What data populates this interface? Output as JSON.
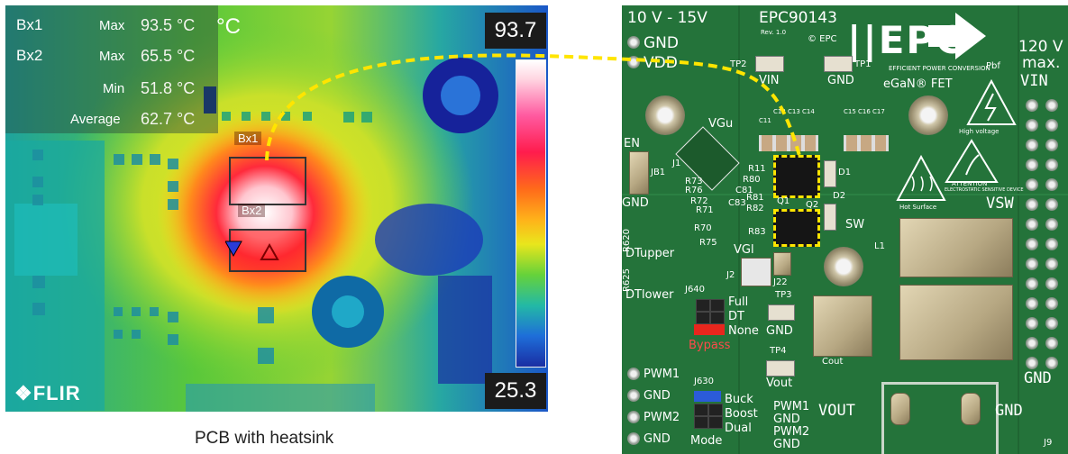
{
  "thermal": {
    "box1_label": "Bx1",
    "box2_label": "Bx2",
    "max1_label": "Max",
    "max1_value": "93.5 °C",
    "max2_label": "Max",
    "max2_value": "65.5 °C",
    "min_label": "Min",
    "min_value": "51.8 °C",
    "avg_label": "Average",
    "avg_value": "62.7 °C",
    "unit": "°C",
    "scale_max": "93.7",
    "scale_min": "25.3",
    "brand": "FLIR",
    "caption": "PCB with heatsink",
    "colors": {
      "hot": "#ff1c4d",
      "cool": "#1a2ea3",
      "mid": "#e9e61c"
    }
  },
  "pcb": {
    "voltage_in": "10 V - 15V",
    "board_name": "EPC90143",
    "rev": "Rev. 1.0",
    "copyright": "© EPC",
    "logo": "EPC",
    "logo_sub": "EFFICIENT POWER CONVERSION",
    "pbf": "Pbf",
    "gnd_top": "GND",
    "vdd": "VDD",
    "tp2": "TP2",
    "vin_tp": "VIN",
    "tp1": "TP1",
    "gnd_tp": "GND",
    "egan": "eGaN® FET",
    "high_v_title": "120 V",
    "high_v_sub": "max.",
    "vin_right": "VIN",
    "high_voltage": "High voltage",
    "vgu": "VGu",
    "c_labels": [
      "C11",
      "C12",
      "C13",
      "C14",
      "C15",
      "C16",
      "C17"
    ],
    "en": "EN",
    "jb1": "JB1",
    "r80": "R80",
    "r11": "R11",
    "c81": "C81",
    "r81": "R81",
    "r82": "R82",
    "c83": "C83",
    "d1": "D1",
    "d2": "D2",
    "q1": "Q1",
    "q2": "Q2",
    "sw": "SW",
    "r83": "R83",
    "hot_surface": "Hot Surface",
    "attention": "ATTENTION",
    "esd_sub": "ELECTROSTATIC SENSITIVE DEVICE",
    "vsw": "VSW",
    "l1": "L1",
    "gnd_left": "GND",
    "r620": "R620",
    "dt_upper": "DTupper",
    "r625": "R625",
    "dt_lower": "DTlower",
    "vgl": "VGl",
    "j2": "J2",
    "j22": "J22",
    "j640": "J640",
    "full": "Full",
    "dt": "DT",
    "none": "None",
    "bypass": "Bypass",
    "tp3": "TP3",
    "gnd_tp3": "GND",
    "tp4": "TP4",
    "vout_tp": "Vout",
    "cout": "Cout",
    "pwm1": "PWM1",
    "gnd_a": "GND",
    "pwm2": "PWM2",
    "gnd_b": "GND",
    "j630": "J630",
    "buck": "Buck",
    "boost": "Boost",
    "dual": "Dual",
    "mode": "Mode",
    "pwm1_b": "PWM1",
    "gnd_c": "GND",
    "pwm2_b": "PWM2",
    "gnd_d": "GND",
    "vout_conn": "VOUT",
    "gnd_conn": "GND",
    "gnd_right": "GND",
    "j9": "J9",
    "r70": "R70",
    "r71": "R71",
    "r72": "R72",
    "r73": "R73",
    "r75": "R75",
    "r76": "R76",
    "j1": "J1",
    "colors": {
      "board": "#24733a",
      "highlight": "#ffe500"
    }
  }
}
